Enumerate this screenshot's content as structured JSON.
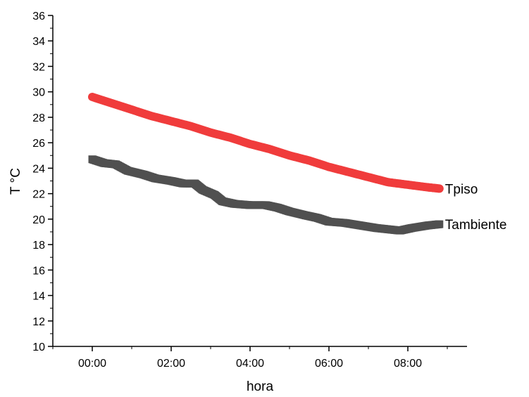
{
  "chart_data": {
    "type": "scatter",
    "xlabel": "hora",
    "ylabel": "T °C",
    "xlim": [
      -1.0,
      9.5
    ],
    "ylim": [
      10,
      36
    ],
    "x_ticks": [
      {
        "value": 0,
        "label": "00:00"
      },
      {
        "value": 2,
        "label": "02:00"
      },
      {
        "value": 4,
        "label": "04:00"
      },
      {
        "value": 6,
        "label": "06:00"
      },
      {
        "value": 8,
        "label": "08:00"
      }
    ],
    "y_ticks": [
      10,
      12,
      14,
      16,
      18,
      20,
      22,
      24,
      26,
      28,
      30,
      32,
      34,
      36
    ],
    "grid": false,
    "legend": "none",
    "series": [
      {
        "name": "Tpiso",
        "marker": "circle",
        "color": "#f03c3c",
        "points": [
          [
            0.0,
            29.6
          ],
          [
            0.5,
            29.1
          ],
          [
            1.0,
            28.6
          ],
          [
            1.5,
            28.1
          ],
          [
            2.0,
            27.7
          ],
          [
            2.5,
            27.3
          ],
          [
            3.0,
            26.8
          ],
          [
            3.5,
            26.4
          ],
          [
            4.0,
            25.9
          ],
          [
            4.5,
            25.5
          ],
          [
            5.0,
            25.0
          ],
          [
            5.5,
            24.6
          ],
          [
            6.0,
            24.1
          ],
          [
            6.5,
            23.7
          ],
          [
            7.0,
            23.3
          ],
          [
            7.5,
            22.9
          ],
          [
            8.0,
            22.7
          ],
          [
            8.5,
            22.5
          ],
          [
            8.8,
            22.4
          ]
        ]
      },
      {
        "name": "Tambiente",
        "marker": "square",
        "color": "#505050",
        "points": [
          [
            0.0,
            24.7
          ],
          [
            0.3,
            24.4
          ],
          [
            0.6,
            24.3
          ],
          [
            0.9,
            23.8
          ],
          [
            1.3,
            23.5
          ],
          [
            1.6,
            23.2
          ],
          [
            2.0,
            23.0
          ],
          [
            2.3,
            22.8
          ],
          [
            2.6,
            22.8
          ],
          [
            2.8,
            22.3
          ],
          [
            3.1,
            21.9
          ],
          [
            3.3,
            21.4
          ],
          [
            3.6,
            21.2
          ],
          [
            4.0,
            21.1
          ],
          [
            4.4,
            21.1
          ],
          [
            4.7,
            20.9
          ],
          [
            5.0,
            20.6
          ],
          [
            5.4,
            20.3
          ],
          [
            5.7,
            20.1
          ],
          [
            6.0,
            19.8
          ],
          [
            6.4,
            19.7
          ],
          [
            6.8,
            19.5
          ],
          [
            7.2,
            19.3
          ],
          [
            7.5,
            19.2
          ],
          [
            7.8,
            19.1
          ],
          [
            8.1,
            19.3
          ],
          [
            8.5,
            19.5
          ],
          [
            8.8,
            19.6
          ]
        ]
      }
    ]
  }
}
